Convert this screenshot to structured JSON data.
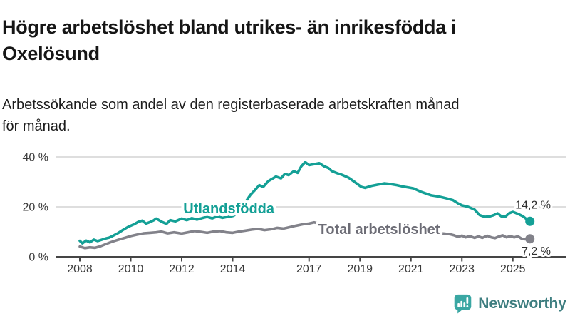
{
  "header": {
    "title_line1": "Högre arbetslöshet bland utrikes- än inrikesfödda i",
    "title_line2": "Oxelösund",
    "subtitle_line1": "Arbetssökande som andel av den registerbaserade arbetskraften månad",
    "subtitle_line2": "för månad."
  },
  "chart_data": {
    "type": "line",
    "title": "Högre arbetslöshet bland utrikes- än inrikesfödda i Oxelösund",
    "subtitle": "Arbetssökande som andel av den registerbaserade arbetskraften månad för månad.",
    "grid": "horizontal",
    "legend_position": "inline-labels",
    "xlim": [
      2008.0,
      2025.67
    ],
    "ylim": [
      0,
      42
    ],
    "x_axis": {
      "ticks": [
        {
          "value": 2008,
          "label": "2008"
        },
        {
          "value": 2010,
          "label": "2010"
        },
        {
          "value": 2012,
          "label": "2012"
        },
        {
          "value": 2014,
          "label": "2014"
        },
        {
          "value": 2017,
          "label": "2017"
        },
        {
          "value": 2019,
          "label": "2019"
        },
        {
          "value": 2021,
          "label": "2021"
        },
        {
          "value": 2023,
          "label": "2023"
        },
        {
          "value": 2025,
          "label": "2025"
        }
      ]
    },
    "y_axis": {
      "ticks": [
        {
          "value": 40,
          "label": "40 %"
        },
        {
          "value": 20,
          "label": "20 %"
        },
        {
          "value": 0,
          "label": "0 %"
        }
      ]
    },
    "series": [
      {
        "name": "Utlandsfödda",
        "color": "#14a096",
        "value_label": "14,2 %",
        "value_label_side": "above",
        "name_label_pos": [
          2013.85,
          17.4
        ],
        "points": [
          [
            2008.0,
            6.4
          ],
          [
            2008.1,
            5.4
          ],
          [
            2008.25,
            6.5
          ],
          [
            2008.4,
            5.8
          ],
          [
            2008.55,
            6.9
          ],
          [
            2008.7,
            6.3
          ],
          [
            2008.85,
            6.8
          ],
          [
            2009.0,
            7.3
          ],
          [
            2009.15,
            7.7
          ],
          [
            2009.3,
            8.4
          ],
          [
            2009.5,
            9.5
          ],
          [
            2009.7,
            10.8
          ],
          [
            2009.9,
            12.0
          ],
          [
            2010.1,
            12.9
          ],
          [
            2010.3,
            14.0
          ],
          [
            2010.45,
            14.5
          ],
          [
            2010.6,
            13.3
          ],
          [
            2010.75,
            13.9
          ],
          [
            2010.9,
            14.6
          ],
          [
            2011.0,
            15.3
          ],
          [
            2011.2,
            14.1
          ],
          [
            2011.4,
            13.2
          ],
          [
            2011.55,
            14.7
          ],
          [
            2011.75,
            14.2
          ],
          [
            2012.0,
            15.3
          ],
          [
            2012.2,
            14.7
          ],
          [
            2012.4,
            15.5
          ],
          [
            2012.6,
            14.9
          ],
          [
            2012.8,
            15.5
          ],
          [
            2013.0,
            16.0
          ],
          [
            2013.2,
            15.4
          ],
          [
            2013.4,
            16.2
          ],
          [
            2013.6,
            15.6
          ],
          [
            2013.8,
            16.0
          ],
          [
            2014.0,
            16.3
          ],
          [
            2014.2,
            17.3
          ],
          [
            2014.4,
            19.5
          ],
          [
            2014.55,
            22.6
          ],
          [
            2014.7,
            24.8
          ],
          [
            2014.9,
            27.0
          ],
          [
            2015.05,
            28.7
          ],
          [
            2015.2,
            28.0
          ],
          [
            2015.4,
            30.3
          ],
          [
            2015.55,
            31.2
          ],
          [
            2015.7,
            32.1
          ],
          [
            2015.9,
            31.4
          ],
          [
            2016.05,
            33.2
          ],
          [
            2016.2,
            32.7
          ],
          [
            2016.4,
            34.3
          ],
          [
            2016.55,
            33.6
          ],
          [
            2016.7,
            36.3
          ],
          [
            2016.85,
            37.9
          ],
          [
            2017.0,
            36.7
          ],
          [
            2017.2,
            37.1
          ],
          [
            2017.4,
            37.5
          ],
          [
            2017.6,
            36.2
          ],
          [
            2017.75,
            35.6
          ],
          [
            2017.9,
            34.3
          ],
          [
            2018.1,
            33.5
          ],
          [
            2018.3,
            32.8
          ],
          [
            2018.55,
            31.7
          ],
          [
            2018.8,
            29.9
          ],
          [
            2019.05,
            28.0
          ],
          [
            2019.2,
            27.6
          ],
          [
            2019.45,
            28.4
          ],
          [
            2019.7,
            28.9
          ],
          [
            2019.95,
            29.4
          ],
          [
            2020.2,
            29.1
          ],
          [
            2020.45,
            28.7
          ],
          [
            2020.7,
            28.1
          ],
          [
            2020.95,
            27.7
          ],
          [
            2021.1,
            27.4
          ],
          [
            2021.4,
            26.0
          ],
          [
            2021.8,
            24.6
          ],
          [
            2022.1,
            24.1
          ],
          [
            2022.4,
            23.4
          ],
          [
            2022.65,
            22.7
          ],
          [
            2022.85,
            21.4
          ],
          [
            2023.0,
            20.6
          ],
          [
            2023.25,
            20.0
          ],
          [
            2023.5,
            18.9
          ],
          [
            2023.7,
            16.7
          ],
          [
            2023.9,
            16.0
          ],
          [
            2024.1,
            16.2
          ],
          [
            2024.25,
            16.7
          ],
          [
            2024.4,
            17.4
          ],
          [
            2024.55,
            16.2
          ],
          [
            2024.7,
            16.0
          ],
          [
            2024.85,
            17.4
          ],
          [
            2025.0,
            18.0
          ],
          [
            2025.2,
            17.2
          ],
          [
            2025.4,
            16.2
          ],
          [
            2025.55,
            15.0
          ],
          [
            2025.67,
            14.2
          ]
        ]
      },
      {
        "name": "Total arbetslöshet",
        "color": "#82828a",
        "label_color": "#6d6d76",
        "value_label": "7,2 %",
        "value_label_side": "below",
        "name_label_pos": [
          2019.75,
          9.1
        ],
        "points": [
          [
            2008.0,
            4.1
          ],
          [
            2008.2,
            3.5
          ],
          [
            2008.4,
            3.8
          ],
          [
            2008.6,
            3.6
          ],
          [
            2008.8,
            4.2
          ],
          [
            2009.0,
            5.0
          ],
          [
            2009.2,
            5.8
          ],
          [
            2009.4,
            6.5
          ],
          [
            2009.6,
            7.1
          ],
          [
            2009.8,
            7.7
          ],
          [
            2010.0,
            8.3
          ],
          [
            2010.25,
            8.9
          ],
          [
            2010.5,
            9.4
          ],
          [
            2010.75,
            9.6
          ],
          [
            2011.0,
            9.8
          ],
          [
            2011.2,
            10.1
          ],
          [
            2011.45,
            9.4
          ],
          [
            2011.7,
            9.8
          ],
          [
            2012.0,
            9.3
          ],
          [
            2012.25,
            9.8
          ],
          [
            2012.5,
            10.3
          ],
          [
            2012.75,
            10.0
          ],
          [
            2013.0,
            9.6
          ],
          [
            2013.25,
            10.1
          ],
          [
            2013.5,
            10.3
          ],
          [
            2013.75,
            9.8
          ],
          [
            2014.0,
            9.6
          ],
          [
            2014.25,
            10.1
          ],
          [
            2014.5,
            10.5
          ],
          [
            2014.75,
            10.9
          ],
          [
            2015.0,
            11.2
          ],
          [
            2015.25,
            10.7
          ],
          [
            2015.5,
            11.0
          ],
          [
            2015.75,
            11.6
          ],
          [
            2016.0,
            11.3
          ],
          [
            2016.25,
            11.9
          ],
          [
            2016.5,
            12.5
          ],
          [
            2016.75,
            13.0
          ],
          [
            2017.0,
            13.3
          ],
          [
            2017.2,
            13.8
          ],
          [
            2017.5,
            13.0
          ],
          [
            2017.75,
            12.7
          ],
          [
            2018.0,
            12.4
          ],
          [
            2018.5,
            11.8
          ],
          [
            2019.0,
            11.2
          ],
          [
            2019.5,
            10.8
          ],
          [
            2019.75,
            10.9
          ],
          [
            2020.0,
            11.0
          ],
          [
            2020.3,
            11.4
          ],
          [
            2020.6,
            11.5
          ],
          [
            2021.0,
            10.8
          ],
          [
            2021.5,
            10.2
          ],
          [
            2022.0,
            9.6
          ],
          [
            2022.3,
            9.3
          ],
          [
            2022.55,
            9.0
          ],
          [
            2022.7,
            8.6
          ],
          [
            2022.85,
            8.0
          ],
          [
            2023.0,
            8.5
          ],
          [
            2023.15,
            7.8
          ],
          [
            2023.3,
            8.3
          ],
          [
            2023.5,
            7.6
          ],
          [
            2023.65,
            8.2
          ],
          [
            2023.8,
            7.6
          ],
          [
            2024.0,
            8.4
          ],
          [
            2024.15,
            7.8
          ],
          [
            2024.3,
            7.5
          ],
          [
            2024.45,
            8.1
          ],
          [
            2024.6,
            8.6
          ],
          [
            2024.75,
            7.8
          ],
          [
            2024.9,
            8.3
          ],
          [
            2025.05,
            7.8
          ],
          [
            2025.2,
            8.2
          ],
          [
            2025.35,
            7.2
          ],
          [
            2025.5,
            7.0
          ],
          [
            2025.67,
            7.2
          ]
        ]
      }
    ]
  },
  "footer": {
    "brand": "Newsworthy",
    "logo_icon": "bar-chart-speech-bubble-icon",
    "logo_color": "#3aa7a3",
    "brand_text_color": "#3e7e80"
  }
}
